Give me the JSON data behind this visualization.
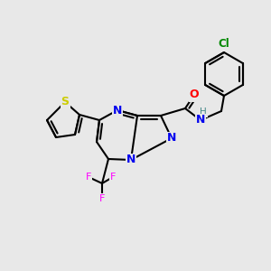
{
  "bg_color": "#e8e8e8",
  "bond_color": "#000000",
  "bond_width": 1.5,
  "colors": {
    "N": "#0000ee",
    "O": "#ff0000",
    "S": "#cccc00",
    "F": "#ff00ff",
    "Cl": "#008800",
    "H_label": "#448888",
    "C": "#000000"
  }
}
